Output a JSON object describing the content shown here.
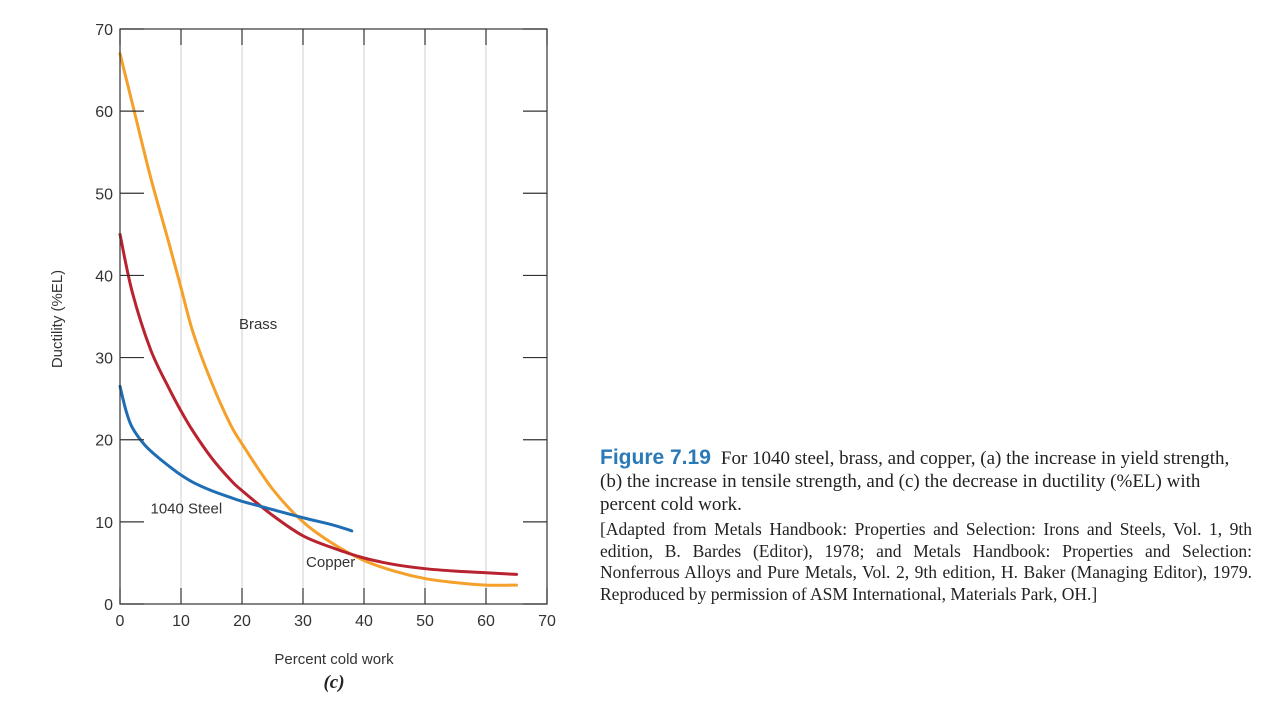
{
  "chart_data": {
    "type": "line",
    "xlabel": "Percent cold work",
    "ylabel": "Ductility (%EL)",
    "sublabel": "(c)",
    "xlim": [
      0,
      70
    ],
    "ylim": [
      0,
      70
    ],
    "xticks": [
      0,
      10,
      20,
      30,
      40,
      50,
      60,
      70
    ],
    "yticks": [
      0,
      10,
      20,
      30,
      40,
      50,
      60,
      70
    ],
    "grid": "vertical",
    "series": [
      {
        "name": "Brass",
        "color": "#f5a02a",
        "x": [
          0,
          2,
          5,
          8,
          10,
          12,
          15,
          18,
          20,
          25,
          30,
          35,
          40,
          45,
          50,
          55,
          60,
          65
        ],
        "y": [
          67,
          61,
          52,
          44,
          38.5,
          33,
          27,
          22,
          19.5,
          14,
          10,
          7.3,
          5.3,
          4,
          3.1,
          2.6,
          2.3,
          2.3
        ]
      },
      {
        "name": "Copper",
        "color": "#b8232f",
        "x": [
          0,
          2,
          5,
          8,
          10,
          12,
          15,
          18,
          20,
          25,
          30,
          35,
          40,
          45,
          50,
          55,
          60,
          65
        ],
        "y": [
          45,
          38,
          31,
          26.3,
          23.5,
          21,
          17.8,
          15.2,
          13.8,
          10.8,
          8.3,
          6.8,
          5.6,
          4.8,
          4.3,
          4,
          3.8,
          3.6
        ]
      },
      {
        "name": "1040 Steel",
        "color": "#1f6eb5",
        "x": [
          0,
          1,
          2,
          4,
          6,
          8,
          10,
          12,
          15,
          18,
          20,
          25,
          30,
          35,
          38
        ],
        "y": [
          26.5,
          23.5,
          21.5,
          19.4,
          18,
          16.8,
          15.7,
          14.8,
          13.8,
          13,
          12.5,
          11.5,
          10.5,
          9.6,
          8.9
        ]
      }
    ],
    "series_label_positions": {
      "Brass": [
        19.5,
        33.5
      ],
      "Copper": [
        30.5,
        4.5
      ],
      "1040 Steel": [
        5,
        11
      ]
    }
  },
  "caption": {
    "figure_number": "Figure 7.19",
    "text": "For 1040 steel, brass, and copper, (a) the increase in yield strength, (b) the increase in tensile strength, and (c) the decrease in ductility (%EL) with percent cold work.",
    "source": "[Adapted from Metals Handbook: Properties and Selection: Irons and Steels, Vol. 1, 9th edition, B. Bardes (Editor), 1978; and Metals Handbook: Properties and Selection: Nonferrous Alloys and Pure Metals, Vol. 2, 9th edition, H. Baker (Managing Editor), 1979. Reproduced by permission of ASM International, Materials Park, OH.]"
  }
}
